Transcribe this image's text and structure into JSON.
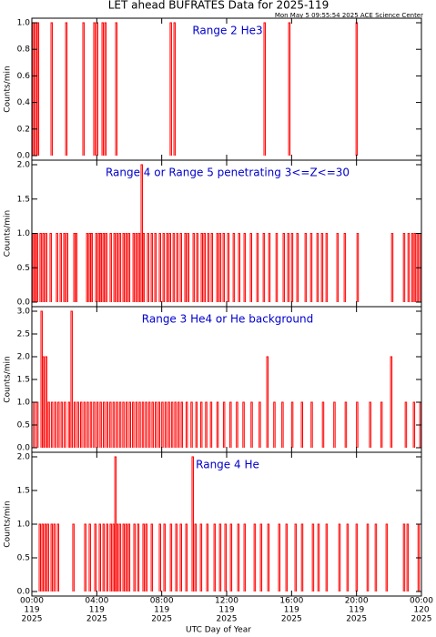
{
  "title": "LET ahead BUFRATES Data for 2025-119",
  "subtitle": "Mon May  5 09:55:54 2025 ACE Science Center",
  "xlabel": "UTC Day of Year",
  "chart_data": [
    {
      "type": "spike",
      "annotation": "Range 2 He3",
      "ylabel": "Counts/min",
      "color": "#ff0000",
      "xlim": [
        0,
        24
      ],
      "ylim": [
        0,
        1
      ],
      "yticks": [
        {
          "value": 0,
          "label": "0.0"
        },
        0.2,
        0.4,
        0.6,
        0.8,
        {
          "value": 1,
          "label": "1.0"
        }
      ],
      "x": [
        0.06,
        0.22,
        0.34,
        1.18,
        2.08,
        3.14,
        3.81,
        3.98,
        4.32,
        4.49,
        5.16,
        8.52,
        8.75,
        14.3,
        15.82,
        19.97
      ],
      "values": [
        1,
        1,
        1,
        1,
        1,
        1,
        1,
        1,
        1,
        1,
        1,
        1,
        1,
        1,
        1,
        1
      ]
    },
    {
      "type": "spike",
      "annotation": "Range 4  or Range 5 penetrating 3<=Z<=30",
      "ylabel": "Counts/min",
      "color": "#ff0000",
      "xlim": [
        0,
        24
      ],
      "ylim": [
        0,
        2
      ],
      "yticks": [
        {
          "value": 0,
          "label": "0.0"
        },
        0.5,
        {
          "value": 1,
          "label": "1.0"
        },
        1.5,
        {
          "value": 2,
          "label": "2.0"
        }
      ],
      "x": [
        0.06,
        0.17,
        0.28,
        0.5,
        0.67,
        0.84,
        1.12,
        1.51,
        1.74,
        1.96,
        2.13,
        2.58,
        2.69,
        3.37,
        3.53,
        3.65,
        3.93,
        4.1,
        4.21,
        4.38,
        4.54,
        4.82,
        5.05,
        5.22,
        5.39,
        5.61,
        5.78,
        5.95,
        6.23,
        6.4,
        6.57,
        6.73,
        6.85,
        7.12,
        7.35,
        7.57,
        7.85,
        8.08,
        8.3,
        8.47,
        8.7,
        8.92,
        9.14,
        9.42,
        9.59,
        9.93,
        10.15,
        10.43,
        10.6,
        10.83,
        11.05,
        11.39,
        11.56,
        11.78,
        12.06,
        12.4,
        12.73,
        13.07,
        13.46,
        13.86,
        14.25,
        14.59,
        15.04,
        15.48,
        15.76,
        15.99,
        16.32,
        16.83,
        17.17,
        17.56,
        17.84,
        18.12,
        18.79,
        19.24,
        20.03,
        22.16,
        22.89,
        23.17,
        23.4,
        23.56,
        23.73,
        23.9
      ],
      "values": [
        1,
        1,
        1,
        1,
        1,
        1,
        1,
        1,
        1,
        1,
        1,
        1,
        1,
        1,
        1,
        1,
        1,
        1,
        1,
        1,
        1,
        1,
        1,
        1,
        1,
        1,
        1,
        1,
        1,
        1,
        1,
        2,
        1,
        1,
        1,
        1,
        1,
        1,
        1,
        1,
        1,
        1,
        1,
        1,
        1,
        1,
        1,
        1,
        1,
        1,
        1,
        1,
        1,
        1,
        1,
        1,
        1,
        1,
        1,
        1,
        1,
        1,
        1,
        1,
        1,
        1,
        1,
        1,
        1,
        1,
        1,
        1,
        1,
        1,
        1,
        1,
        1,
        1,
        1,
        1,
        1,
        1
      ]
    },
    {
      "type": "spike",
      "annotation": "Range 3 He4  or He background",
      "ylabel": "Counts/min",
      "color": "#ff0000",
      "xlim": [
        0,
        24
      ],
      "ylim": [
        0,
        3
      ],
      "yticks": [
        {
          "value": 0,
          "label": "0.0"
        },
        0.5,
        {
          "value": 1,
          "label": "1.0"
        },
        1.5,
        {
          "value": 2,
          "label": "2.0"
        },
        2.5,
        {
          "value": 3,
          "label": "3.0"
        }
      ],
      "x": [
        0.1,
        0.3,
        0.56,
        0.67,
        0.84,
        1.0,
        1.2,
        1.4,
        1.6,
        1.8,
        2.0,
        2.25,
        2.41,
        2.6,
        2.8,
        3.0,
        3.2,
        3.4,
        3.6,
        3.8,
        4.0,
        4.2,
        4.4,
        4.6,
        4.8,
        5.0,
        5.2,
        5.4,
        5.6,
        5.8,
        6.0,
        6.2,
        6.4,
        6.6,
        6.8,
        7.0,
        7.2,
        7.4,
        7.6,
        7.8,
        8.0,
        8.2,
        8.4,
        8.6,
        8.8,
        9.0,
        9.2,
        9.5,
        9.8,
        10.1,
        10.4,
        10.7,
        11.0,
        11.4,
        11.8,
        12.2,
        12.6,
        13.0,
        13.5,
        14.0,
        14.47,
        14.9,
        15.4,
        16.0,
        16.6,
        17.2,
        17.9,
        18.6,
        19.3,
        20.0,
        20.8,
        21.5,
        22.1,
        23.0,
        23.5,
        23.9
      ],
      "values": [
        1,
        1,
        3,
        2,
        2,
        1,
        1,
        1,
        1,
        1,
        1,
        1,
        3,
        1,
        1,
        1,
        1,
        1,
        1,
        1,
        1,
        1,
        1,
        1,
        1,
        1,
        1,
        1,
        1,
        1,
        1,
        1,
        1,
        1,
        1,
        1,
        1,
        1,
        1,
        1,
        1,
        1,
        1,
        1,
        1,
        1,
        1,
        1,
        1,
        1,
        1,
        1,
        1,
        1,
        1,
        1,
        1,
        1,
        1,
        1,
        2,
        1,
        1,
        1,
        1,
        1,
        1,
        1,
        1,
        1,
        1,
        1,
        2,
        1,
        1,
        1
      ]
    },
    {
      "type": "spike",
      "annotation": "Range 4 He",
      "ylabel": "Counts/min",
      "color": "#ff0000",
      "xlim": [
        0,
        24
      ],
      "ylim": [
        0,
        2
      ],
      "yticks": [
        {
          "value": 0,
          "label": "0.0"
        },
        0.5,
        {
          "value": 1,
          "label": "1.0"
        },
        1.5,
        {
          "value": 2,
          "label": "2.0"
        }
      ],
      "xticks": [
        {
          "value": 0,
          "label": "00:00",
          "day": "119",
          "year": "2025"
        },
        {
          "value": 4,
          "label": "04:00",
          "day": "119",
          "year": "2025"
        },
        {
          "value": 8,
          "label": "08:00",
          "day": "119",
          "year": "2025"
        },
        {
          "value": 12,
          "label": "12:00",
          "day": "119",
          "year": "2025"
        },
        {
          "value": 16,
          "label": "16:00",
          "day": "119",
          "year": "2025"
        },
        {
          "value": 20,
          "label": "20:00",
          "day": "119",
          "year": "2025"
        },
        {
          "value": 24,
          "label": "00:00",
          "day": "120",
          "year": "2025"
        }
      ],
      "x": [
        0.45,
        0.62,
        0.79,
        0.95,
        1.18,
        1.35,
        1.57,
        2.52,
        3.25,
        3.53,
        3.87,
        4.15,
        4.38,
        4.6,
        4.82,
        4.99,
        5.11,
        5.22,
        5.39,
        5.61,
        5.78,
        5.95,
        6.28,
        6.51,
        6.84,
        7.01,
        7.35,
        7.85,
        8.13,
        8.53,
        8.86,
        9.14,
        9.48,
        9.87,
        10.04,
        10.38,
        10.77,
        11.22,
        11.56,
        11.89,
        12.23,
        12.68,
        13.07,
        13.69,
        14.08,
        14.53,
        15.2,
        15.65,
        16.21,
        16.61,
        17.28,
        17.62,
        18.12,
        18.91,
        19.41,
        19.97,
        20.65,
        21.15,
        21.82,
        22.89,
        23.11,
        23.79
      ],
      "values": [
        1,
        1,
        1,
        1,
        1,
        1,
        1,
        1,
        1,
        1,
        1,
        1,
        1,
        1,
        1,
        1,
        2,
        1,
        1,
        1,
        1,
        1,
        1,
        1,
        1,
        1,
        1,
        1,
        1,
        1,
        1,
        1,
        1,
        2,
        1,
        1,
        1,
        1,
        1,
        1,
        1,
        1,
        1,
        1,
        1,
        1,
        1,
        1,
        1,
        1,
        1,
        1,
        1,
        1,
        1,
        1,
        1,
        1,
        1,
        1,
        1,
        1
      ]
    }
  ]
}
